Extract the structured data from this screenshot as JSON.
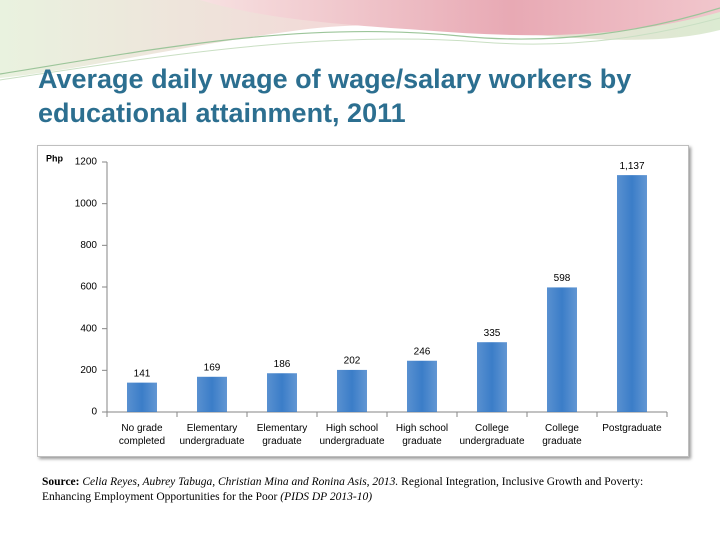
{
  "chart_data": {
    "type": "bar",
    "title": "Average daily wage of wage/salary workers by educational attainment, 2011",
    "y_label": "Php",
    "categories": [
      "No grade completed",
      "Elementary undergraduate",
      "Elementary graduate",
      "High school undergraduate",
      "High school graduate",
      "College undergraduate",
      "College graduate",
      "Postgraduate"
    ],
    "values": [
      141,
      169,
      186,
      202,
      246,
      335,
      598,
      1137
    ],
    "value_labels": [
      "141",
      "169",
      "186",
      "202",
      "246",
      "335",
      "598",
      "1,137"
    ],
    "color": "#3b7dc8",
    "ylim": [
      0,
      1200
    ],
    "yticks": [
      0,
      200,
      400,
      600,
      800,
      1000,
      1200
    ],
    "grid": false
  },
  "footnote": {
    "label": "Source:",
    "authors": "Celia Reyes, Aubrey Tabuga, Christian Mina and Ronina Asis, 2013.",
    "title": "Regional Integration, Inclusive Growth and Poverty: Enhancing Employment Opportunities for the Poor",
    "series": "(PIDS DP 2013-10)"
  }
}
